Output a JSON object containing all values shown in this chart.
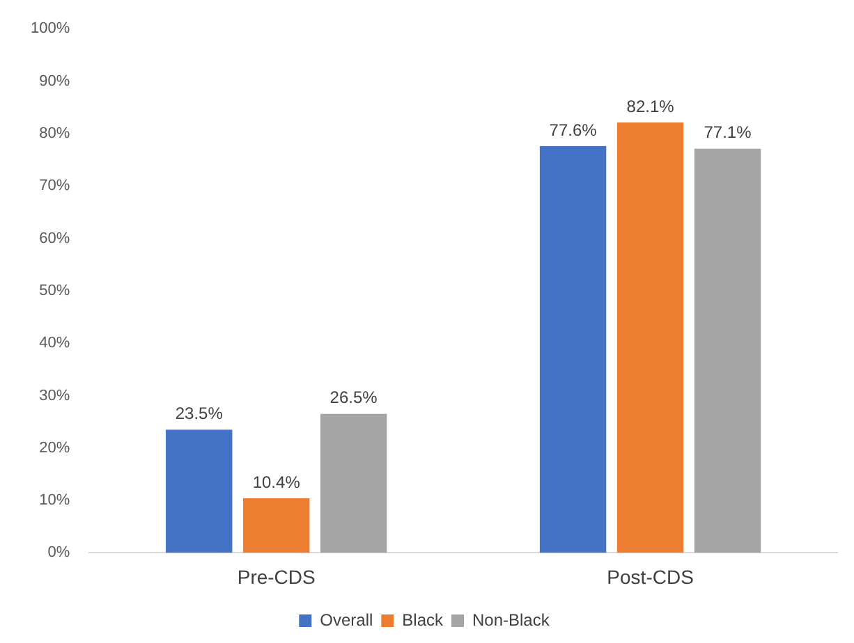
{
  "chart_data": {
    "type": "bar",
    "categories": [
      "Pre-CDS",
      "Post-CDS"
    ],
    "series": [
      {
        "name": "Overall",
        "color": "#4472c4",
        "values": [
          23.5,
          77.6
        ],
        "value_labels": [
          "23.5%",
          "77.6%"
        ]
      },
      {
        "name": "Black",
        "color": "#ed7d31",
        "values": [
          10.4,
          82.1
        ],
        "value_labels": [
          "10.4%",
          "82.1%"
        ]
      },
      {
        "name": "Non-Black",
        "color": "#a5a5a5",
        "values": [
          26.5,
          77.1
        ],
        "value_labels": [
          "26.5%",
          "77.1%"
        ]
      }
    ],
    "ylim": [
      0,
      100
    ],
    "yticks": [
      {
        "value": 0,
        "label": "0%"
      },
      {
        "value": 10,
        "label": "10%"
      },
      {
        "value": 20,
        "label": "20%"
      },
      {
        "value": 30,
        "label": "30%"
      },
      {
        "value": 40,
        "label": "40%"
      },
      {
        "value": 50,
        "label": "50%"
      },
      {
        "value": 60,
        "label": "60%"
      },
      {
        "value": 70,
        "label": "70%"
      },
      {
        "value": 80,
        "label": "80%"
      },
      {
        "value": 90,
        "label": "90%"
      },
      {
        "value": 100,
        "label": "100%"
      }
    ],
    "grid": false,
    "legend": "bottom"
  }
}
